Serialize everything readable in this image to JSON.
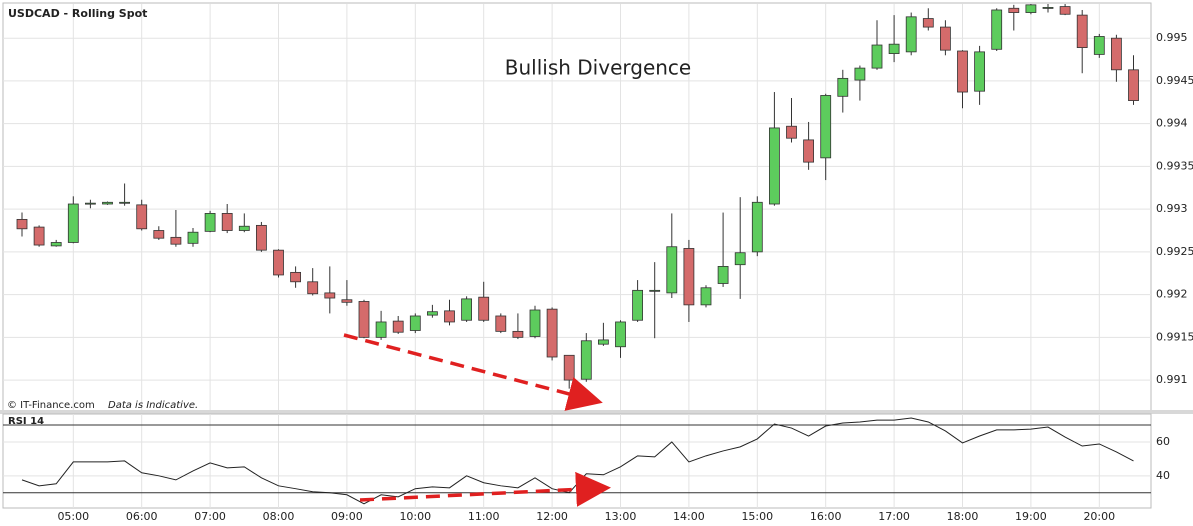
{
  "chart_data": [
    {
      "type": "candlestick",
      "title": "USDCAD - Rolling Spot",
      "annotation": "Bullish Divergence",
      "source": "© IT-Finance.com",
      "note": "Data is Indicative.",
      "categories": [
        null,
        null,
        null,
        "05:00",
        null,
        null,
        null,
        "06:00",
        null,
        null,
        null,
        "07:00",
        null,
        null,
        null,
        "08:00",
        null,
        null,
        null,
        "09:00",
        null,
        null,
        null,
        "10:00",
        null,
        null,
        null,
        "11:00",
        null,
        null,
        null,
        "12:00",
        null,
        null,
        null,
        "13:00",
        null,
        null,
        null,
        "14:00",
        null,
        null,
        null,
        "15:00",
        null,
        null,
        null,
        "16:00",
        null,
        null,
        null,
        "17:00",
        null,
        null,
        null,
        "18:00",
        null,
        null,
        null,
        "19:00",
        null,
        null,
        null,
        "20:00",
        null,
        null
      ],
      "open": [
        0.99288,
        0.99279,
        0.99257,
        0.99261,
        0.99306,
        0.99306,
        0.99307,
        0.99305,
        0.99275,
        0.99267,
        0.9926,
        0.99274,
        0.99295,
        0.99275,
        0.99281,
        0.99252,
        0.99226,
        0.99215,
        0.99202,
        0.99194,
        0.99192,
        0.9915,
        0.99169,
        0.99158,
        0.99176,
        0.99181,
        0.9917,
        0.99197,
        0.99175,
        0.99157,
        0.99151,
        0.99183,
        0.99129,
        0.99101,
        0.99142,
        0.99139,
        0.9917,
        0.99204,
        0.99202,
        0.99254,
        0.99188,
        0.99213,
        0.99235,
        0.9925,
        0.99306,
        0.99397,
        0.99381,
        0.9936,
        0.99432,
        0.99451,
        0.99465,
        0.99482,
        0.99484,
        0.99523,
        0.99513,
        0.99485,
        0.99438,
        0.99487,
        0.99535,
        0.9953,
        0.99535,
        0.99537,
        0.99527,
        0.99481,
        0.995,
        0.99463
      ],
      "high": [
        0.99296,
        0.99281,
        0.99264,
        0.99315,
        0.99311,
        0.99309,
        0.9933,
        0.99311,
        0.9928,
        0.99299,
        0.99278,
        0.99298,
        0.99306,
        0.99295,
        0.99285,
        0.99253,
        0.99233,
        0.99231,
        0.99233,
        0.99217,
        0.99194,
        0.99181,
        0.99175,
        0.99178,
        0.99188,
        0.99194,
        0.99198,
        0.99215,
        0.99178,
        0.99178,
        0.99187,
        0.99185,
        0.99129,
        0.99155,
        0.99167,
        0.9917,
        0.99217,
        0.99238,
        0.99295,
        0.99264,
        0.99211,
        0.99296,
        0.99314,
        0.99315,
        0.99437,
        0.9943,
        0.99402,
        0.99435,
        0.99463,
        0.99468,
        0.99521,
        0.99527,
        0.9953,
        0.99535,
        0.99521,
        0.99486,
        0.99491,
        0.99535,
        0.99539,
        0.9954,
        0.9954,
        0.9954,
        0.99533,
        0.99505,
        0.99504,
        0.9948
      ],
      "low": [
        0.99268,
        0.99256,
        0.99256,
        0.9926,
        0.99301,
        0.99305,
        0.99304,
        0.99275,
        0.99264,
        0.99256,
        0.99256,
        0.99273,
        0.99272,
        0.99273,
        0.9925,
        0.9922,
        0.99208,
        0.99199,
        0.99178,
        0.99187,
        0.99149,
        0.99147,
        0.99154,
        0.99155,
        0.99173,
        0.99164,
        0.99168,
        0.99168,
        0.99155,
        0.99148,
        0.99149,
        0.99123,
        0.9909,
        0.99098,
        0.9914,
        0.99126,
        0.99168,
        0.99149,
        0.99196,
        0.99168,
        0.99185,
        0.99209,
        0.99195,
        0.99245,
        0.99304,
        0.99378,
        0.99346,
        0.99334,
        0.99413,
        0.99427,
        0.99463,
        0.99472,
        0.9948,
        0.99509,
        0.9948,
        0.99418,
        0.99422,
        0.99485,
        0.99509,
        0.99528,
        0.9953,
        0.99527,
        0.99459,
        0.99477,
        0.99449,
        0.99422
      ],
      "close": [
        0.99277,
        0.99258,
        0.99261,
        0.99306,
        0.99307,
        0.99308,
        0.99308,
        0.99277,
        0.99266,
        0.99259,
        0.99273,
        0.99295,
        0.99275,
        0.9928,
        0.99252,
        0.99223,
        0.99215,
        0.99201,
        0.99196,
        0.99191,
        0.9915,
        0.99168,
        0.99156,
        0.99175,
        0.9918,
        0.99168,
        0.99195,
        0.9917,
        0.99157,
        0.9915,
        0.99182,
        0.99127,
        0.991,
        0.99146,
        0.99147,
        0.99168,
        0.99205,
        0.99205,
        0.99256,
        0.99188,
        0.99208,
        0.99233,
        0.99249,
        0.99308,
        0.99395,
        0.99383,
        0.99355,
        0.99433,
        0.99453,
        0.99465,
        0.99492,
        0.99493,
        0.99525,
        0.99513,
        0.99486,
        0.99437,
        0.99484,
        0.99533,
        0.9953,
        0.99539,
        0.99536,
        0.99528,
        0.99489,
        0.99502,
        0.99463,
        0.99427
      ],
      "up_color": "#5dcc5d",
      "down_color": "#d46b6b",
      "ylim": [
        0.99065,
        0.9954
      ],
      "yticks": [
        0.991,
        0.9915,
        0.992,
        0.9925,
        0.993,
        0.9935,
        0.994,
        0.9945,
        0.995
      ],
      "grid": true
    },
    {
      "type": "line",
      "title": "RSI 14",
      "color": "#222222",
      "values": [
        37.6,
        34.1,
        35.3,
        48.2,
        48.2,
        48.2,
        48.8,
        41.8,
        40.0,
        37.6,
        42.9,
        47.6,
        44.7,
        45.3,
        38.8,
        34.1,
        32.4,
        30.6,
        30.0,
        28.8,
        23.5,
        28.8,
        27.6,
        32.4,
        33.5,
        32.9,
        40.0,
        35.9,
        34.1,
        32.9,
        38.8,
        32.4,
        30.0,
        41.2,
        40.6,
        45.3,
        51.8,
        51.2,
        60.0,
        48.2,
        51.8,
        54.7,
        57.1,
        61.8,
        70.6,
        68.2,
        63.5,
        69.4,
        71.2,
        71.8,
        72.9,
        72.9,
        74.1,
        71.8,
        66.5,
        59.4,
        63.5,
        67.1,
        67.1,
        67.6,
        68.8,
        62.9,
        57.6,
        58.8,
        54.1,
        48.8
      ],
      "ylim": [
        21,
        76.5
      ],
      "yticks": [
        40,
        60
      ],
      "hlines": [
        30,
        70
      ],
      "grid": true
    }
  ]
}
